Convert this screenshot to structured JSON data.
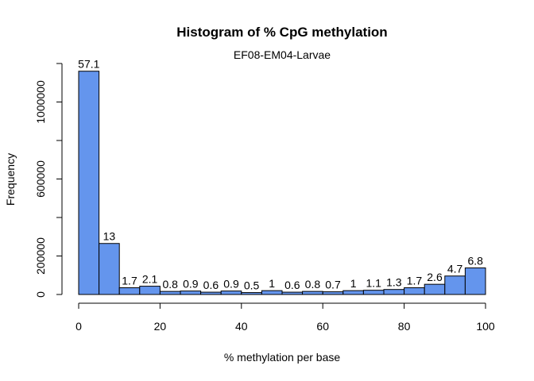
{
  "chart_data": {
    "type": "bar",
    "title": "Histogram of % CpG methylation",
    "subtitle": "EF08-EM04-Larvae",
    "xlabel": "% methylation per base",
    "ylabel": "Frequency",
    "xlim": [
      0,
      100
    ],
    "ylim": [
      0,
      1200000
    ],
    "bin_width": 5,
    "x_ticks": [
      0,
      20,
      40,
      60,
      80,
      100
    ],
    "y_ticks": [
      0,
      200000,
      400000,
      600000,
      800000,
      1000000,
      1200000
    ],
    "y_tick_labels": [
      "0",
      "200000",
      "",
      "600000",
      "",
      "1000000",
      ""
    ],
    "bins": [
      {
        "x0": 0,
        "x1": 5,
        "value": 1160000,
        "label": "57.1"
      },
      {
        "x0": 5,
        "x1": 10,
        "value": 265000,
        "label": "13"
      },
      {
        "x0": 10,
        "x1": 15,
        "value": 35000,
        "label": "1.7"
      },
      {
        "x0": 15,
        "x1": 20,
        "value": 43000,
        "label": "2.1"
      },
      {
        "x0": 20,
        "x1": 25,
        "value": 16000,
        "label": "0.8"
      },
      {
        "x0": 25,
        "x1": 30,
        "value": 18000,
        "label": "0.9"
      },
      {
        "x0": 30,
        "x1": 35,
        "value": 12000,
        "label": "0.6"
      },
      {
        "x0": 35,
        "x1": 40,
        "value": 18000,
        "label": "0.9"
      },
      {
        "x0": 40,
        "x1": 45,
        "value": 10000,
        "label": "0.5"
      },
      {
        "x0": 45,
        "x1": 50,
        "value": 20000,
        "label": "1"
      },
      {
        "x0": 50,
        "x1": 55,
        "value": 12000,
        "label": "0.6"
      },
      {
        "x0": 55,
        "x1": 60,
        "value": 16000,
        "label": "0.8"
      },
      {
        "x0": 60,
        "x1": 65,
        "value": 14000,
        "label": "0.7"
      },
      {
        "x0": 65,
        "x1": 70,
        "value": 20000,
        "label": "1"
      },
      {
        "x0": 70,
        "x1": 75,
        "value": 22000,
        "label": "1.1"
      },
      {
        "x0": 75,
        "x1": 80,
        "value": 26000,
        "label": "1.3"
      },
      {
        "x0": 80,
        "x1": 85,
        "value": 35000,
        "label": "1.7"
      },
      {
        "x0": 85,
        "x1": 90,
        "value": 53000,
        "label": "2.6"
      },
      {
        "x0": 90,
        "x1": 95,
        "value": 96000,
        "label": "4.7"
      },
      {
        "x0": 95,
        "x1": 100,
        "value": 138000,
        "label": "6.8"
      }
    ],
    "bar_color": "#6495ED",
    "grid": false,
    "legend": "none"
  }
}
